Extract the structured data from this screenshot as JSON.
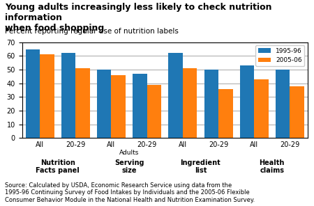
{
  "chart_data": {
    "type": "bar",
    "title": "Young adults increasingly less likely to check nutrition information\nwhen food shopping",
    "subtitle": "Percent reporting regular use of nutrition labels",
    "source": "Source: Calculated by USDA, Economic Research Service using data from the\n1995-96 Continuing Survey of Food Intakes by Individuals and the 2005-06 Flexible\nConsumer Behavior Module in the National Health and Nutrition Examination Survey.",
    "categories": [
      "All",
      "20-29",
      "All",
      "20-29",
      "All",
      "20-29",
      "All",
      "20-29"
    ],
    "groups": [
      "Nutrition\nFacts panel",
      "Serving\nsize",
      "Ingredient\nlist",
      "Health\nclaims"
    ],
    "annotations": [
      {
        "text": "Adults",
        "group": "Serving\nsize"
      }
    ],
    "series": [
      {
        "name": "1995-96",
        "values": [
          65,
          62,
          50,
          47,
          62,
          50,
          53,
          50
        ]
      },
      {
        "name": "2005-06",
        "values": [
          61,
          51,
          46,
          39,
          51,
          36,
          43,
          38
        ]
      }
    ],
    "ylim": [
      0,
      70
    ],
    "yticks": [
      0,
      10,
      20,
      30,
      40,
      50,
      60,
      70
    ],
    "grid": true,
    "legend": "upper right"
  }
}
